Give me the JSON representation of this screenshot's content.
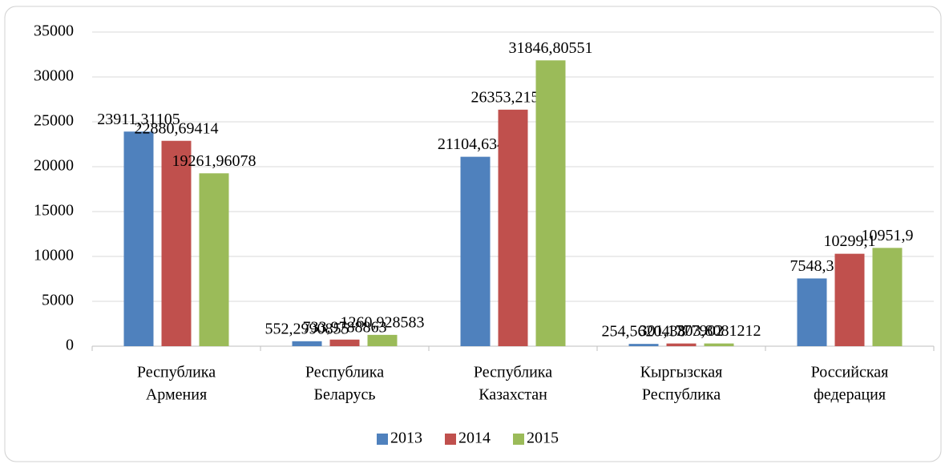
{
  "chart_data": {
    "type": "bar",
    "categories": [
      [
        "Республика",
        "Армения"
      ],
      [
        "Республика",
        "Беларусь"
      ],
      [
        "Республика",
        "Казахстан"
      ],
      [
        "Кыргызская",
        "Республика"
      ],
      [
        "Российская",
        "федерация"
      ]
    ],
    "series": [
      {
        "name": "2013",
        "color": "#4f81bd",
        "values": [
          23911.31105,
          552.2990855,
          21104.6345,
          254.5620438,
          7548.3
        ],
        "value_labels": [
          "23911,31105",
          "552,2990855",
          "21104,6345",
          "254,5620438",
          "7548,3"
        ]
      },
      {
        "name": "2014",
        "color": "#c0504d",
        "values": [
          22880.69414,
          733.9788863,
          26353.21528,
          301.1777902,
          10299.1
        ],
        "value_labels": [
          "22880,69414",
          "733,9788863",
          "26353,21528",
          "301,1777902",
          "10299,1"
        ]
      },
      {
        "name": "2015",
        "color": "#9bbb59",
        "values": [
          19261.96078,
          1260.928583,
          31846.80551,
          303.8081212,
          10951.9
        ],
        "value_labels": [
          "19261,96078",
          "1260,928583",
          "31846,80551",
          "303,8081212",
          "10951,9"
        ]
      }
    ],
    "ylim": [
      0,
      35000
    ],
    "yticks": [
      0,
      5000,
      10000,
      15000,
      20000,
      25000,
      30000,
      35000
    ],
    "grid": true,
    "legend": "bottom"
  }
}
